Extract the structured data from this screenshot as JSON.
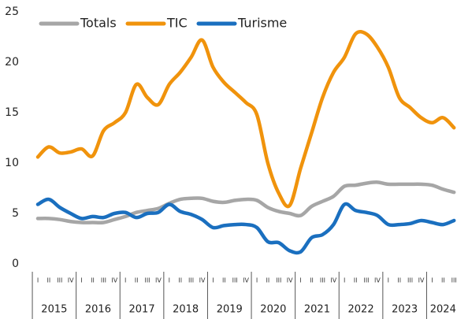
{
  "chart_data": {
    "type": "line",
    "categories": [
      "I",
      "II",
      "III",
      "IV",
      "I",
      "II",
      "III",
      "IV",
      "I",
      "II",
      "III",
      "IV",
      "I",
      "II",
      "III",
      "IV",
      "I",
      "II",
      "III",
      "IV",
      "I",
      "II",
      "III",
      "IV",
      "I",
      "II",
      "III",
      "IV",
      "I",
      "II",
      "III",
      "IV",
      "I",
      "II",
      "III",
      "IV",
      "I",
      "II",
      "III"
    ],
    "years": [
      "2015",
      "2016",
      "2017",
      "2018",
      "2019",
      "2020",
      "2021",
      "2022",
      "2023",
      "2024"
    ],
    "series": [
      {
        "name": "Totals",
        "color": "#a6a6a6",
        "values": [
          4.5,
          4.5,
          4.4,
          4.2,
          4.1,
          4.1,
          4.1,
          4.4,
          4.7,
          5.1,
          5.3,
          5.5,
          6.0,
          6.4,
          6.5,
          6.5,
          6.2,
          6.1,
          6.3,
          6.4,
          6.3,
          5.6,
          5.2,
          5.0,
          4.8,
          5.7,
          6.2,
          6.7,
          7.7,
          7.8,
          8.0,
          8.1,
          7.9,
          7.9,
          7.9,
          7.9,
          7.8,
          7.4,
          7.1
        ]
      },
      {
        "name": "TIC",
        "color": "#f0930c",
        "values": [
          10.6,
          11.6,
          11.0,
          11.1,
          11.4,
          10.7,
          13.2,
          14.0,
          15.0,
          17.8,
          16.5,
          15.8,
          17.8,
          19.0,
          20.5,
          22.2,
          19.5,
          18.0,
          17.0,
          16.0,
          14.8,
          10.0,
          7.0,
          5.8,
          9.5,
          13.0,
          16.5,
          19.0,
          20.5,
          22.8,
          22.8,
          21.5,
          19.5,
          16.5,
          15.5,
          14.5,
          14.0,
          14.5,
          13.5
        ]
      },
      {
        "name": "Turisme",
        "color": "#1a6fbf",
        "values": [
          5.9,
          6.4,
          5.6,
          5.0,
          4.5,
          4.7,
          4.6,
          5.0,
          5.1,
          4.6,
          5.0,
          5.1,
          5.9,
          5.2,
          4.9,
          4.4,
          3.6,
          3.8,
          3.9,
          3.9,
          3.6,
          2.2,
          2.1,
          1.3,
          1.2,
          2.6,
          2.9,
          3.9,
          5.9,
          5.3,
          5.1,
          4.8,
          3.9,
          3.9,
          4.0,
          4.3,
          4.1,
          3.9,
          4.3
        ]
      }
    ],
    "ylim": [
      0,
      25
    ],
    "yticks": [
      0,
      5,
      10,
      15,
      20,
      25
    ],
    "grid": false
  }
}
